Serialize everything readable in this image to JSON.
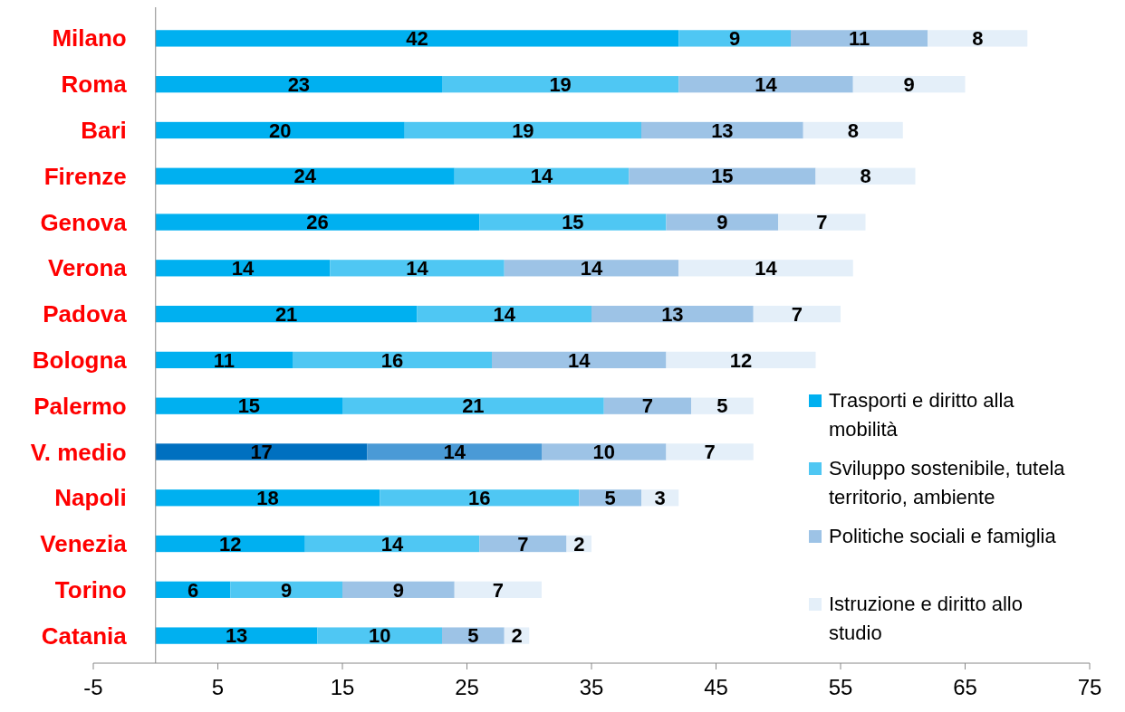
{
  "chart_data": {
    "type": "bar",
    "orientation": "horizontal",
    "stacked": true,
    "categories": [
      "Milano",
      "Roma",
      "Bari",
      "Firenze",
      "Genova",
      "Verona",
      "Padova",
      "Bologna",
      "Palermo",
      "V. medio",
      "Napoli",
      "Venezia",
      "Torino",
      "Catania"
    ],
    "series": [
      {
        "name": "Trasporti e diritto alla mobilità",
        "color": "#00b0f0",
        "colors": [
          "#00b0f0",
          "#00b0f0",
          "#00b0f0",
          "#00b0f0",
          "#00b0f0",
          "#00b0f0",
          "#00b0f0",
          "#00b0f0",
          "#00b0f0",
          "#0070c0",
          "#00b0f0",
          "#00b0f0",
          "#00b0f0",
          "#00b0f0"
        ],
        "values": [
          42,
          23,
          20,
          24,
          26,
          14,
          21,
          11,
          15,
          17,
          18,
          12,
          6,
          13
        ]
      },
      {
        "name": "Sviluppo sostenibile, tutela territorio, ambiente",
        "color": "#4fc7f3",
        "colors": [
          "#4fc7f3",
          "#4fc7f3",
          "#4fc7f3",
          "#4fc7f3",
          "#4fc7f3",
          "#4fc7f3",
          "#4fc7f3",
          "#4fc7f3",
          "#4fc7f3",
          "#4a9ad6",
          "#4fc7f3",
          "#4fc7f3",
          "#4fc7f3",
          "#4fc7f3"
        ],
        "values": [
          9,
          19,
          19,
          14,
          15,
          14,
          14,
          16,
          21,
          14,
          16,
          14,
          9,
          10
        ]
      },
      {
        "name": "Politiche sociali e famiglia",
        "color": "#9dc3e6",
        "values": [
          11,
          14,
          13,
          15,
          9,
          14,
          13,
          14,
          7,
          10,
          5,
          7,
          9,
          5
        ]
      },
      {
        "name": "Istruzione e diritto allo studio",
        "color": "#e4eff9",
        "values": [
          8,
          9,
          8,
          8,
          7,
          14,
          7,
          12,
          5,
          7,
          3,
          2,
          7,
          2
        ]
      }
    ],
    "xlim": [
      -5,
      75
    ],
    "xticks": [
      -5,
      5,
      15,
      25,
      35,
      45,
      55,
      65,
      75
    ],
    "data_labels": true,
    "legend": "right"
  }
}
